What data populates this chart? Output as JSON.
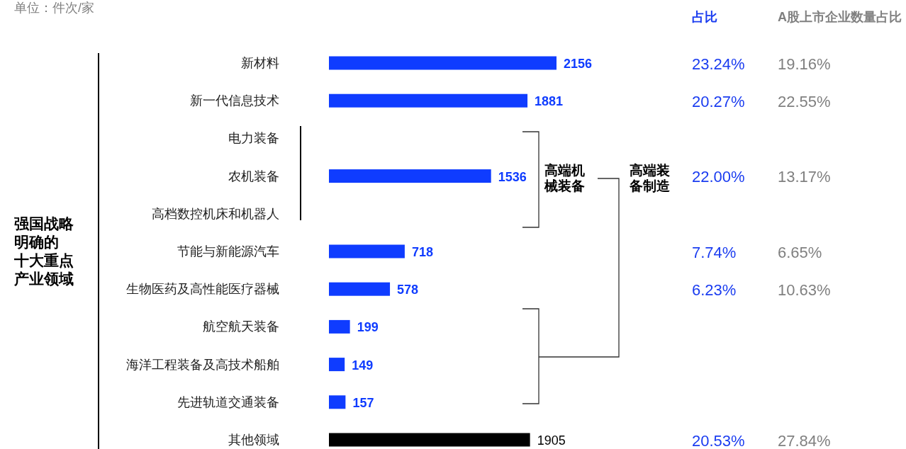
{
  "chart_data": [
    {
      "type": "bar",
      "orientation": "horizontal",
      "categories": [
        "新材料",
        "新一代信息技术",
        "电力装备",
        "农机装备",
        "高档数控机床和机器人",
        "节能与新能源汽车",
        "生物医药及高性能医疗器械",
        "航空航天装备",
        "海洋工程装备及高技术船舶",
        "先进轨道交通装备",
        "其他领域"
      ],
      "values": [
        2156,
        1881,
        null,
        1536,
        null,
        718,
        578,
        199,
        149,
        157,
        1905
      ],
      "colors": [
        "#0f3cff",
        "#0f3cff",
        null,
        "#0f3cff",
        null,
        "#0f3cff",
        "#0f3cff",
        "#0f3cff",
        "#0f3cff",
        "#0f3cff",
        "#000000"
      ],
      "data_labels": true,
      "tick_labels": "y",
      "annotations": [
        "单位：件次/家",
        "强国战略明确的十大重点产业领域",
        "高端机械装备",
        "高端装备制造"
      ]
    },
    {
      "type": "other",
      "title": "占比",
      "color": "#1a3cf0",
      "categories": [
        null,
        null,
        null,
        null,
        null,
        null,
        null,
        null,
        null,
        null,
        null
      ],
      "values": [
        23.24,
        20.27,
        null,
        22.0,
        null,
        7.74,
        6.23,
        null,
        null,
        null,
        20.53
      ],
      "value_labels": [
        "23.24%",
        "20.27%",
        null,
        "22.00%",
        null,
        "7.74%",
        "6.23%",
        null,
        null,
        null,
        "20.53%"
      ]
    },
    {
      "type": "other",
      "title": "A股上市企业数量占比",
      "color": "#808080",
      "categories": [
        null,
        null,
        null,
        null,
        null,
        null,
        null,
        null,
        null,
        null,
        null
      ],
      "values": [
        19.16,
        22.55,
        null,
        13.17,
        null,
        6.65,
        10.63,
        null,
        null,
        null,
        27.84
      ],
      "value_labels": [
        "19.16%",
        "22.55%",
        null,
        "13.17%",
        null,
        "6.65%",
        "10.63%",
        null,
        null,
        null,
        "27.84%"
      ]
    }
  ]
}
